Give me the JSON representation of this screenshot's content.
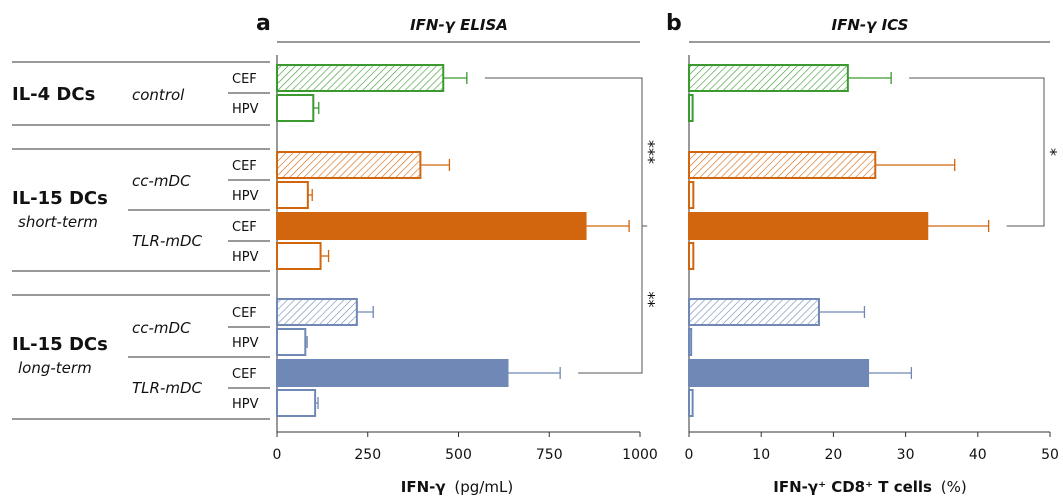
{
  "colors": {
    "green": "#3a9a2e",
    "orange": "#d2660f",
    "blue": "#6f88b5",
    "line": "#333333",
    "sig": "#555555"
  },
  "rows": [
    "CEF",
    "HPV",
    "CEF",
    "HPV",
    "CEF",
    "HPV",
    "CEF",
    "HPV",
    "CEF",
    "HPV"
  ],
  "groups": [
    {
      "name": "IL-4 DCs",
      "sub": "",
      "mdc": "control"
    },
    {
      "name": "IL-15 DCs",
      "sub": "short-term",
      "mdc": "cc-mDC",
      "mdc2": "TLR-mDC"
    },
    {
      "name": "IL-15 DCs",
      "sub": "long-term",
      "mdc": "cc-mDC",
      "mdc2": "TLR-mDC"
    }
  ],
  "chart_data": [
    {
      "type": "bar",
      "panel_letter": "a",
      "title": "IFN-γ ELISA",
      "xlabel_main": "IFN-γ",
      "xlabel_unit": "(pg/mL)",
      "xlim": [
        0,
        1000
      ],
      "xticks": [
        "0",
        "250",
        "500",
        "750",
        "1000"
      ],
      "categories": [
        "CEF",
        "HPV",
        "CEF",
        "HPV",
        "CEF",
        "HPV",
        "CEF",
        "HPV",
        "CEF",
        "HPV"
      ],
      "values": [
        458,
        100,
        395,
        85,
        850,
        120,
        220,
        78,
        635,
        105
      ],
      "errors": [
        65,
        15,
        80,
        12,
        120,
        22,
        45,
        5,
        145,
        8
      ],
      "significance": [
        {
          "label": "***",
          "from_row": 0,
          "to_row": 4
        },
        {
          "label": "**",
          "from_row": 4,
          "to_row": 8
        }
      ]
    },
    {
      "type": "bar",
      "panel_letter": "b",
      "title": "IFN-γ ICS",
      "xlabel_main": "IFN-γ⁺ CD8⁺ T cells",
      "xlabel_unit": "(%)",
      "xlim": [
        0,
        50
      ],
      "xticks": [
        "0",
        "10",
        "20",
        "30",
        "40",
        "50"
      ],
      "categories": [
        "CEF",
        "HPV",
        "CEF",
        "HPV",
        "CEF",
        "HPV",
        "CEF",
        "HPV",
        "CEF",
        "HPV"
      ],
      "values": [
        22,
        0.5,
        25.8,
        0.6,
        33,
        0.6,
        18,
        0.3,
        24.8,
        0.5
      ],
      "errors": [
        6,
        0,
        11,
        0,
        8.5,
        0,
        6.3,
        0,
        6,
        0
      ],
      "significance": [
        {
          "label": "*",
          "from_row": 0,
          "to_row": 4
        }
      ]
    }
  ]
}
